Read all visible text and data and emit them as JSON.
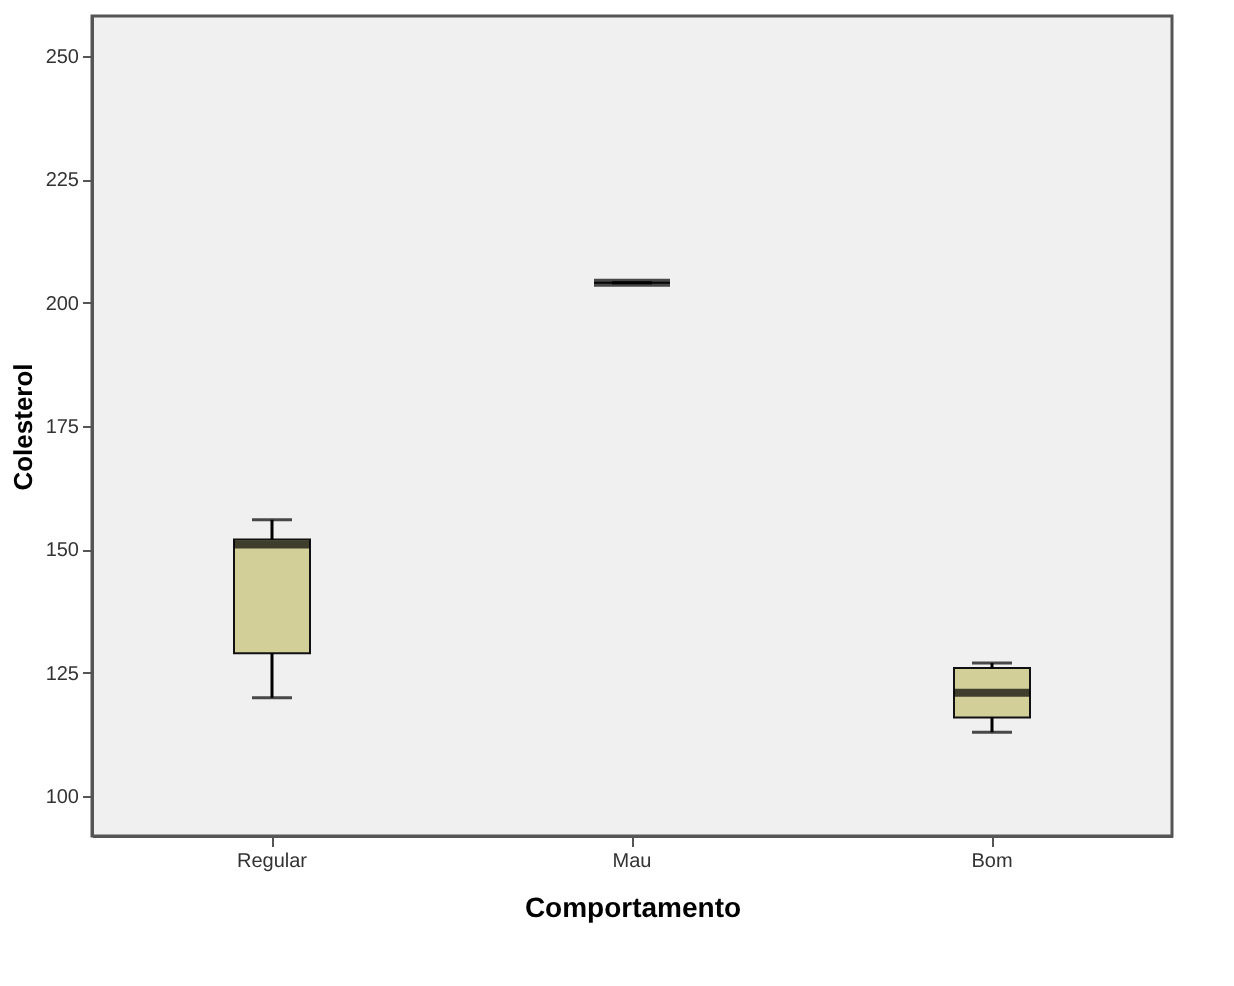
{
  "chart_data": {
    "type": "box",
    "xlabel": "Comportamento",
    "ylabel": "Colesterol",
    "categories": [
      "Regular",
      "Mau",
      "Bom"
    ],
    "boxes": [
      {
        "low": 120,
        "q1": 129,
        "median": 151,
        "q3": 152,
        "high": 156
      },
      {
        "low": 204,
        "q1": 204,
        "median": 204,
        "q3": 204,
        "high": 204
      },
      {
        "low": 113,
        "q1": 116,
        "median": 121,
        "q3": 126,
        "high": 127
      }
    ],
    "colors": [
      "#d3cf98",
      "#000000",
      "#d3cf98"
    ],
    "ylim": [
      92,
      258
    ],
    "yticks": [
      100,
      125,
      150,
      175,
      200,
      225,
      250
    ]
  }
}
